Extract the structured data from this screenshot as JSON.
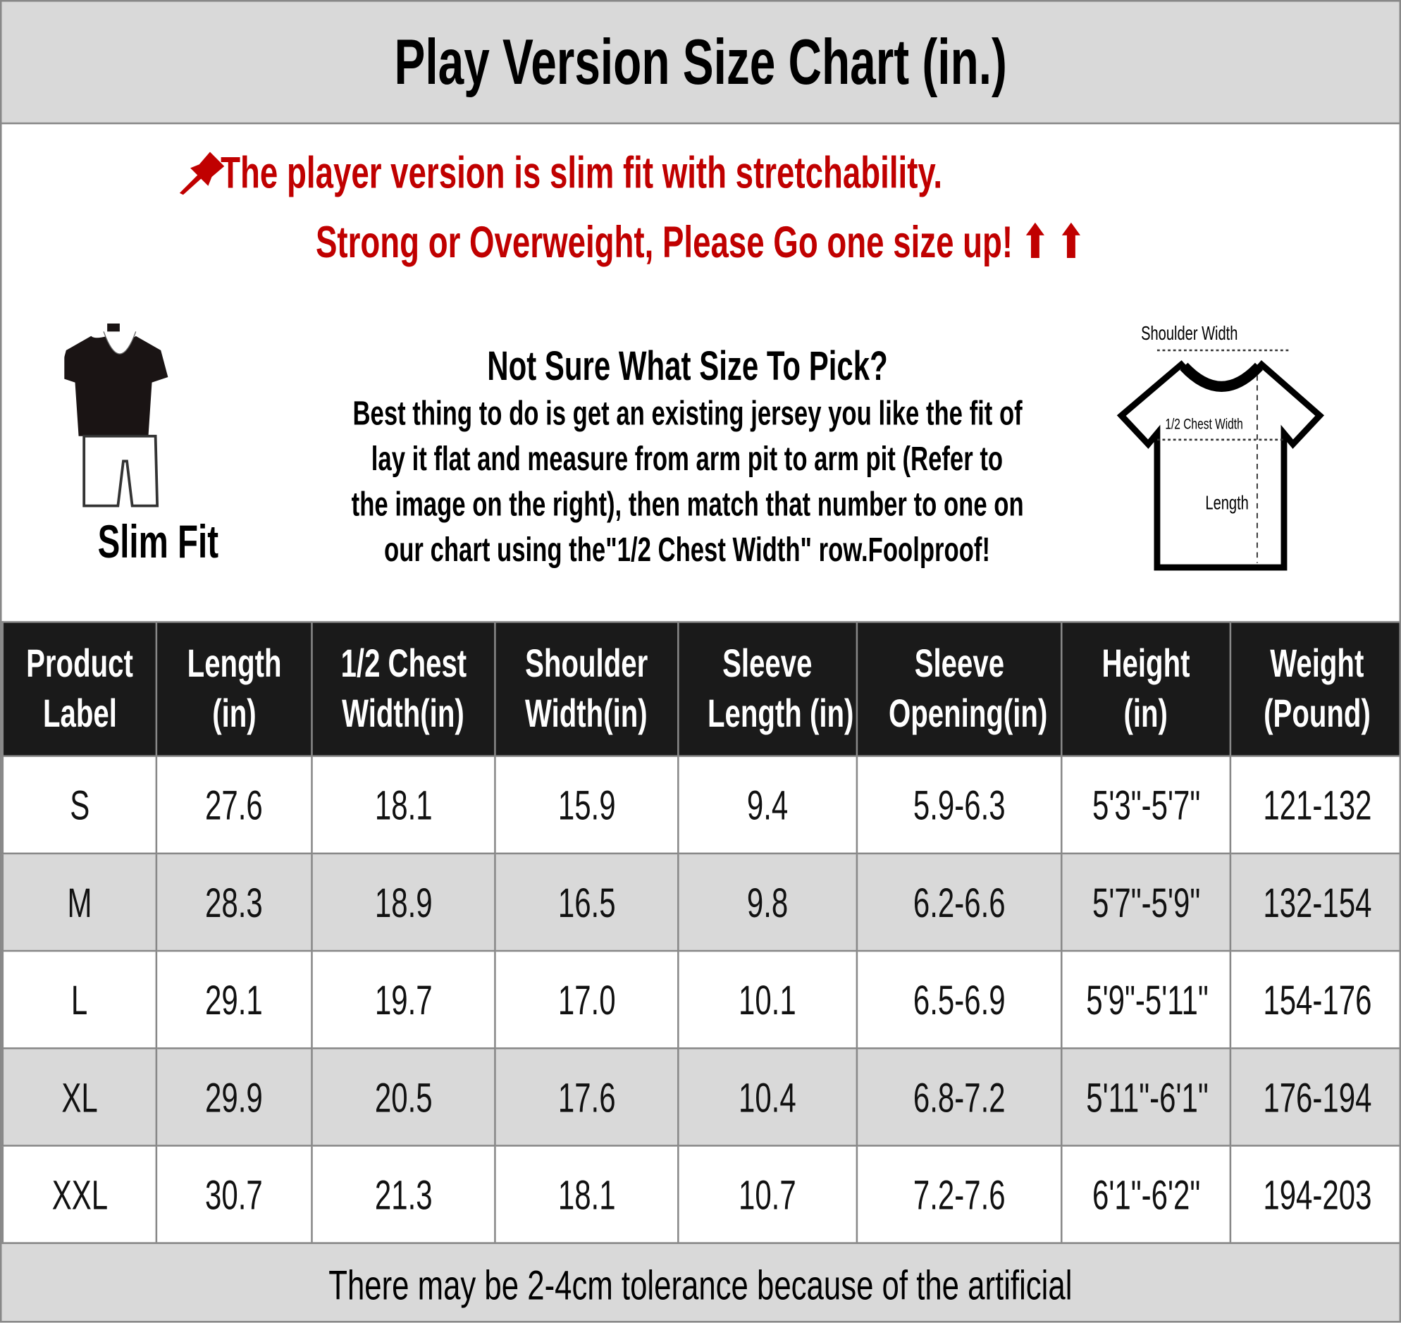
{
  "title": "Play Version Size Chart (in.)",
  "notice": {
    "line1": "The player version is slim fit with stretchability.",
    "line2": "Strong or Overweight, Please Go one size up! ⬆ ⬆",
    "accent": "#c00000",
    "pin_icon": "pushpin-icon"
  },
  "fit_label": "Slim Fit",
  "guide": {
    "heading": "Not Sure What Size To Pick?",
    "lines": [
      "Best thing to do is get an existing jersey you like the fit of",
      "lay it flat and measure from arm pit to arm pit (Refer to",
      "the image on the right), then match that number to one on",
      "our chart using the\"1/2 Chest Width\" row.Foolproof!"
    ]
  },
  "diagram": {
    "shoulder": "Shoulder Width",
    "chest": "1/2 Chest Width",
    "length": "Length"
  },
  "table": {
    "headers": [
      [
        "Product",
        "Label"
      ],
      [
        "Length",
        "(in)"
      ],
      [
        "1/2 Chest",
        "Width(in)"
      ],
      [
        "Shoulder",
        "Width(in)"
      ],
      [
        "Sleeve",
        "Length (in)"
      ],
      [
        "Sleeve",
        "Opening(in)"
      ],
      [
        "Height",
        "(in)"
      ],
      [
        "Weight",
        "(Pound)"
      ]
    ],
    "rows": [
      [
        "S",
        "27.6",
        "18.1",
        "15.9",
        "9.4",
        "5.9-6.3",
        "5'3\"-5'7\"",
        "121-132"
      ],
      [
        "M",
        "28.3",
        "18.9",
        "16.5",
        "9.8",
        "6.2-6.6",
        "5'7\"-5'9\"",
        "132-154"
      ],
      [
        "L",
        "29.1",
        "19.7",
        "17.0",
        "10.1",
        "6.5-6.9",
        "5'9\"-5'11\"",
        "154-176"
      ],
      [
        "XL",
        "29.9",
        "20.5",
        "17.6",
        "10.4",
        "6.8-7.2",
        "5'11\"-6'1\"",
        "176-194"
      ],
      [
        "XXL",
        "30.7",
        "21.3",
        "18.1",
        "10.7",
        "7.2-7.6",
        "6'1\"-6'2\"",
        "194-203"
      ]
    ]
  },
  "footer": "There may be 2-4cm tolerance because of the artificial"
}
